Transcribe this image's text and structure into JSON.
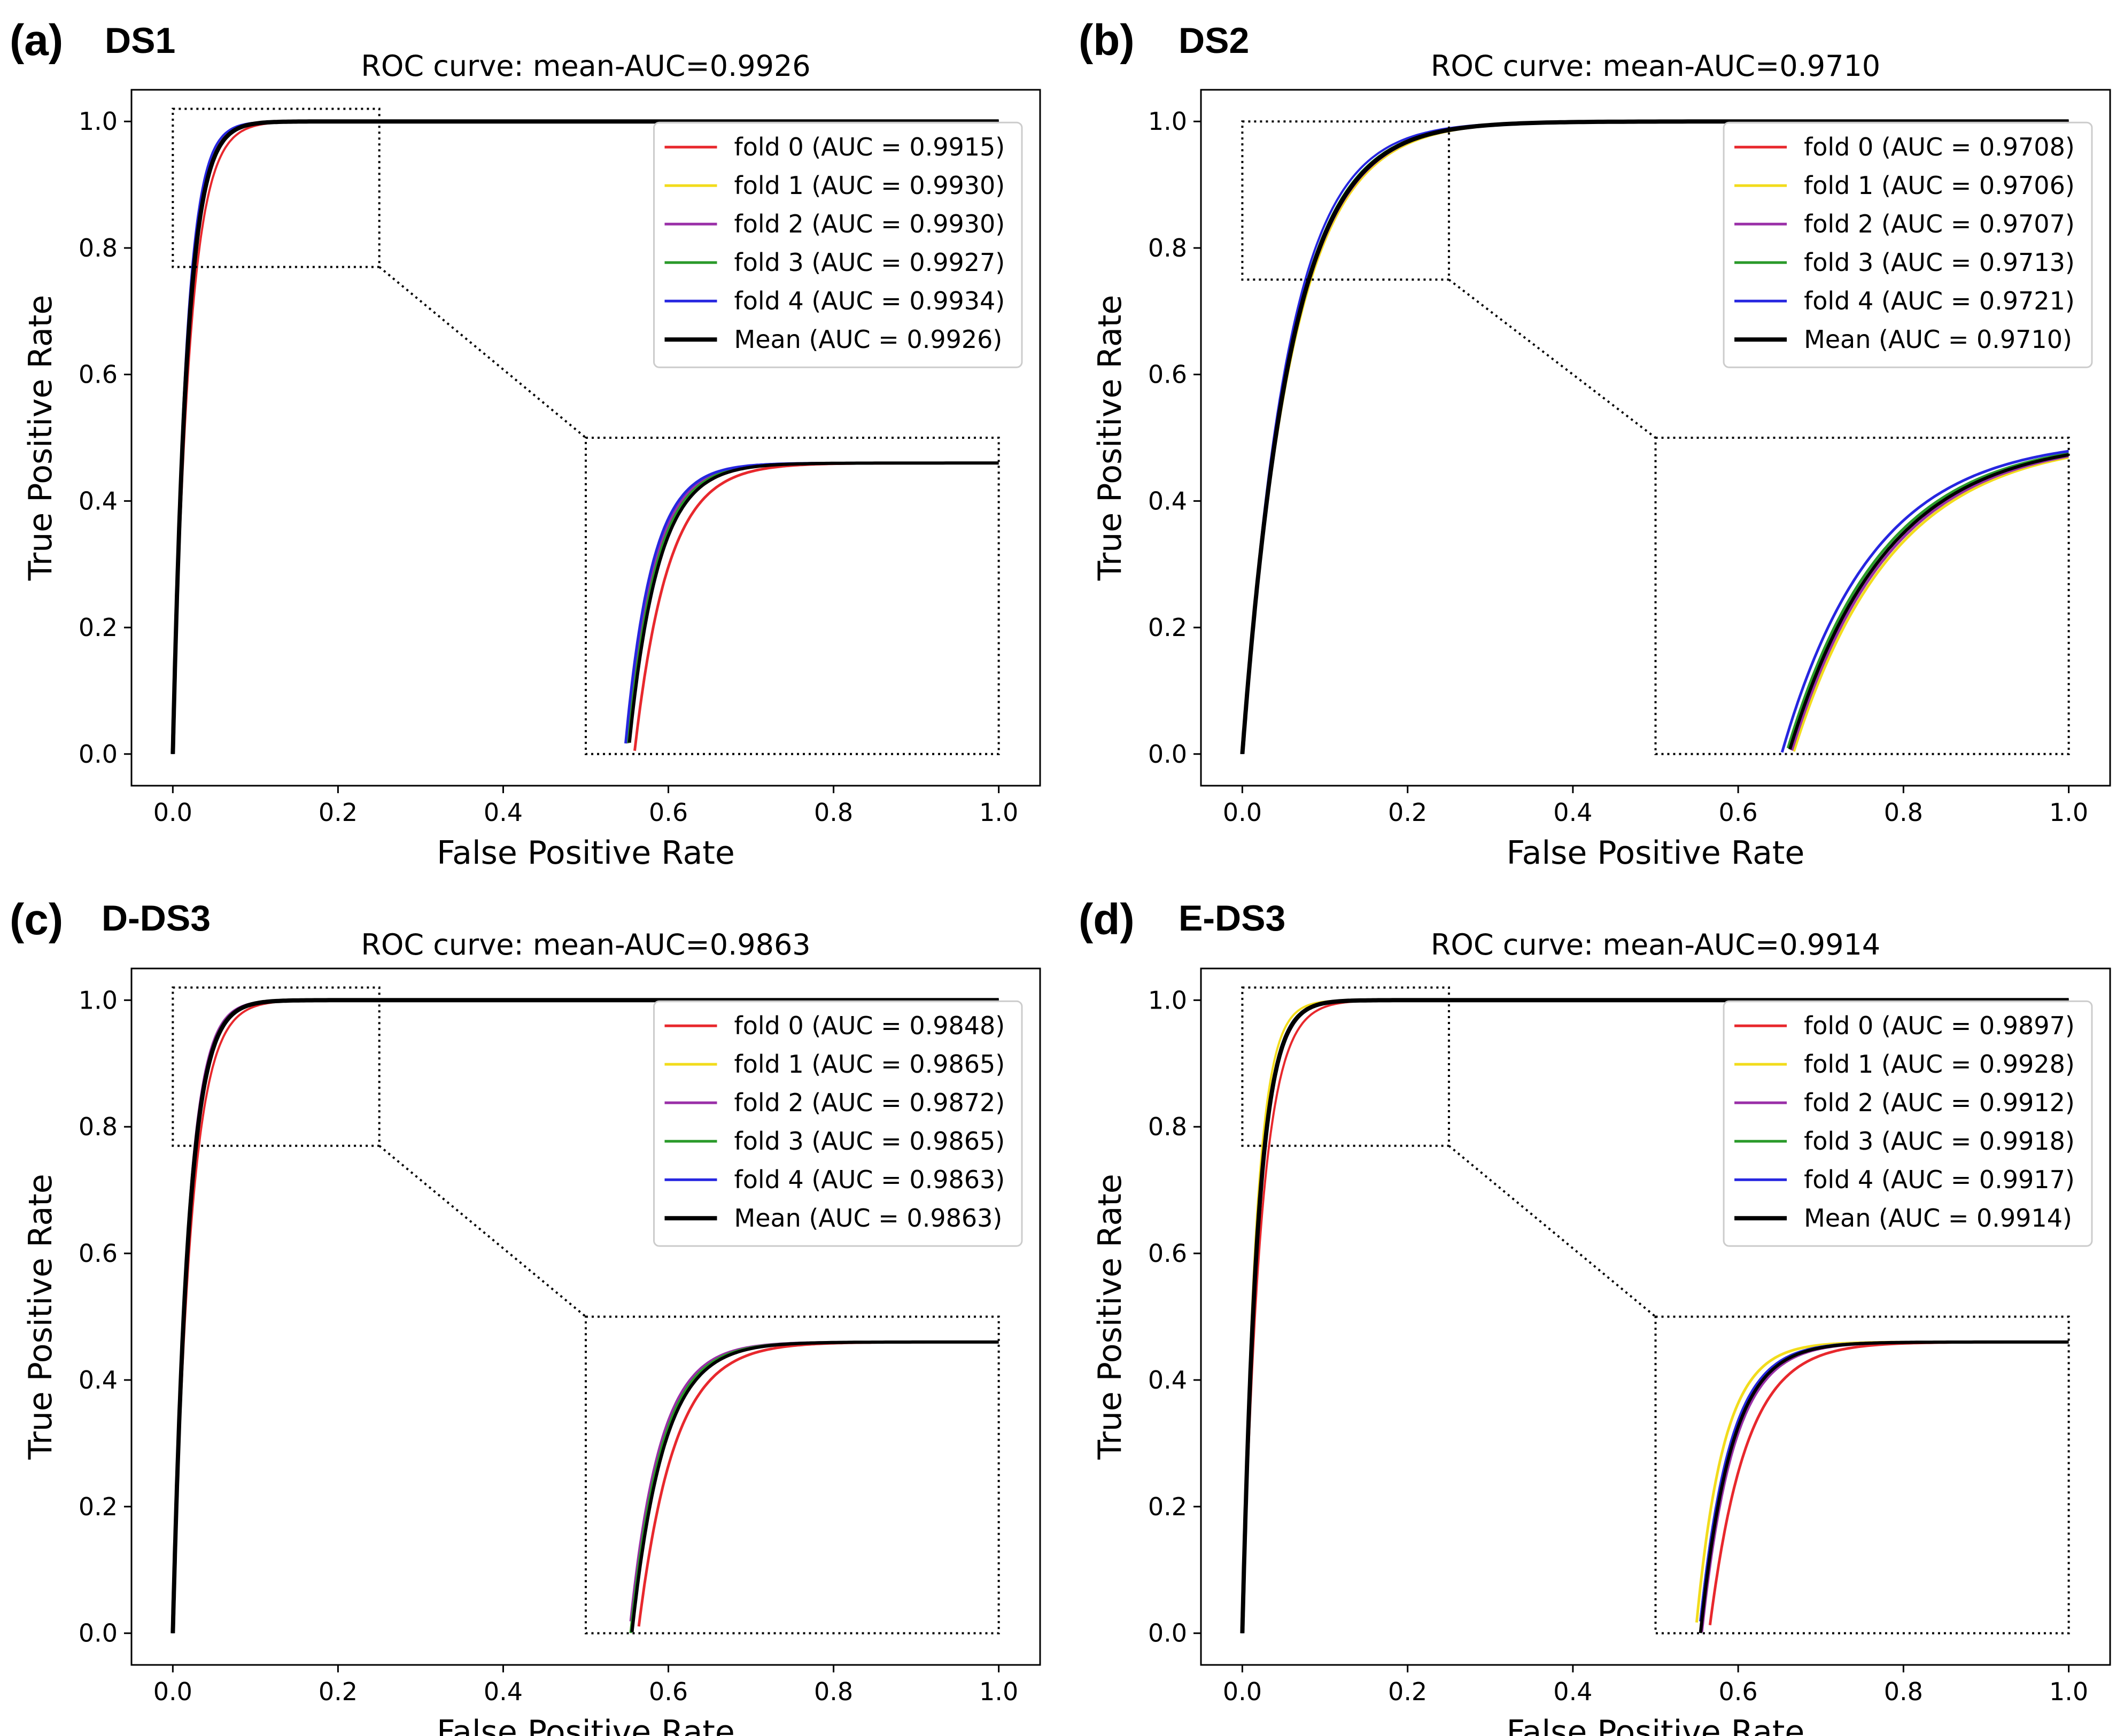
{
  "figure": {
    "xlabel": "False Positive Rate",
    "ylabel": "True Positive Rate",
    "colors": {
      "fold 0": "#e8282d",
      "fold 1": "#f2dc1c",
      "fold 2": "#9a30a8",
      "fold 3": "#2a9a2a",
      "fold 4": "#2626e0",
      "Mean": "#000000"
    }
  },
  "chart_data": [
    {
      "type": "line",
      "letter": "(a)",
      "name": "DS1",
      "title": "ROC curve: mean-AUC=0.9926",
      "xlabel": "False Positive Rate",
      "ylabel": "True Positive Rate",
      "xlim": [
        0,
        1
      ],
      "ylim": [
        0,
        1
      ],
      "xticks": [
        "0.0",
        "0.2",
        "0.4",
        "0.6",
        "0.8",
        "1.0"
      ],
      "yticks": [
        "0.0",
        "0.2",
        "0.4",
        "0.6",
        "0.8",
        "1.0"
      ],
      "zoom_region": {
        "x": [
          0,
          0.25
        ],
        "y": [
          0.77,
          1.02
        ]
      },
      "series": [
        {
          "name": "fold 0",
          "auc": "0.9915",
          "label": "fold 0 (AUC = 0.9915)",
          "k": 0.02
        },
        {
          "name": "fold 1",
          "auc": "0.9930",
          "label": "fold 1 (AUC = 0.9930)",
          "k": 0.0165
        },
        {
          "name": "fold 2",
          "auc": "0.9930",
          "label": "fold 2 (AUC = 0.9930)",
          "k": 0.0165
        },
        {
          "name": "fold 3",
          "auc": "0.9927",
          "label": "fold 3 (AUC = 0.9927)",
          "k": 0.017
        },
        {
          "name": "fold 4",
          "auc": "0.9934",
          "label": "fold 4 (AUC = 0.9934)",
          "k": 0.016
        },
        {
          "name": "Mean",
          "auc": "0.9926",
          "label": "Mean (AUC = 0.9926)",
          "k": 0.0175
        }
      ]
    },
    {
      "type": "line",
      "letter": "(b)",
      "name": "DS2",
      "title": "ROC curve: mean-AUC=0.9710",
      "xlabel": "False Positive Rate",
      "ylabel": "True Positive Rate",
      "xlim": [
        0,
        1
      ],
      "ylim": [
        0,
        1
      ],
      "xticks": [
        "0.0",
        "0.2",
        "0.4",
        "0.6",
        "0.8",
        "1.0"
      ],
      "yticks": [
        "0.0",
        "0.2",
        "0.4",
        "0.6",
        "0.8",
        "1.0"
      ],
      "zoom_region": {
        "x": [
          0,
          0.25
        ],
        "y": [
          0.75,
          1.0
        ]
      },
      "series": [
        {
          "name": "fold 0",
          "auc": "0.9708",
          "label": "fold 0 (AUC = 0.9708)",
          "k": 0.058
        },
        {
          "name": "fold 1",
          "auc": "0.9706",
          "label": "fold 1 (AUC = 0.9706)",
          "k": 0.06
        },
        {
          "name": "fold 2",
          "auc": "0.9707",
          "label": "fold 2 (AUC = 0.9707)",
          "k": 0.059
        },
        {
          "name": "fold 3",
          "auc": "0.9713",
          "label": "fold 3 (AUC = 0.9713)",
          "k": 0.057
        },
        {
          "name": "fold 4",
          "auc": "0.9721",
          "label": "fold 4 (AUC = 0.9721)",
          "k": 0.055
        },
        {
          "name": "Mean",
          "auc": "0.9710",
          "label": "Mean (AUC = 0.9710)",
          "k": 0.058
        }
      ]
    },
    {
      "type": "line",
      "letter": "(c)",
      "name": "D-DS3",
      "title": "ROC curve: mean-AUC=0.9863",
      "xlabel": "False Positive Rate",
      "ylabel": "True Positive Rate",
      "xlim": [
        0,
        1
      ],
      "ylim": [
        0,
        1
      ],
      "xticks": [
        "0.0",
        "0.2",
        "0.4",
        "0.6",
        "0.8",
        "1.0"
      ],
      "yticks": [
        "0.0",
        "0.2",
        "0.4",
        "0.6",
        "0.8",
        "1.0"
      ],
      "zoom_region": {
        "x": [
          0,
          0.25
        ],
        "y": [
          0.77,
          1.02
        ]
      },
      "series": [
        {
          "name": "fold 0",
          "auc": "0.9848",
          "label": "fold 0 (AUC = 0.9848)",
          "k": 0.0215
        },
        {
          "name": "fold 1",
          "auc": "0.9865",
          "label": "fold 1 (AUC = 0.9865)",
          "k": 0.0185
        },
        {
          "name": "fold 2",
          "auc": "0.9872",
          "label": "fold 2 (AUC = 0.9872)",
          "k": 0.018
        },
        {
          "name": "fold 3",
          "auc": "0.9865",
          "label": "fold 3 (AUC = 0.9865)",
          "k": 0.0185
        },
        {
          "name": "fold 4",
          "auc": "0.9863",
          "label": "fold 4 (AUC = 0.9863)",
          "k": 0.019
        },
        {
          "name": "Mean",
          "auc": "0.9863",
          "label": "Mean (AUC = 0.9863)",
          "k": 0.019
        }
      ]
    },
    {
      "type": "line",
      "letter": "(d)",
      "name": "E-DS3",
      "title": "ROC curve: mean-AUC=0.9914",
      "xlabel": "False Positive Rate",
      "ylabel": "True Positive Rate",
      "xlim": [
        0,
        1
      ],
      "ylim": [
        0,
        1
      ],
      "xticks": [
        "0.0",
        "0.2",
        "0.4",
        "0.6",
        "0.8",
        "1.0"
      ],
      "yticks": [
        "0.0",
        "0.2",
        "0.4",
        "0.6",
        "0.8",
        "1.0"
      ],
      "zoom_region": {
        "x": [
          0,
          0.25
        ],
        "y": [
          0.77,
          1.02
        ]
      },
      "series": [
        {
          "name": "fold 0",
          "auc": "0.9897",
          "label": "fold 0 (AUC = 0.9897)",
          "k": 0.022
        },
        {
          "name": "fold 1",
          "auc": "0.9928",
          "label": "fold 1 (AUC = 0.9928)",
          "k": 0.0165
        },
        {
          "name": "fold 2",
          "auc": "0.9912",
          "label": "fold 2 (AUC = 0.9912)",
          "k": 0.019
        },
        {
          "name": "fold 3",
          "auc": "0.9918",
          "label": "fold 3 (AUC = 0.9918)",
          "k": 0.018
        },
        {
          "name": "fold 4",
          "auc": "0.9917",
          "label": "fold 4 (AUC = 0.9917)",
          "k": 0.018
        },
        {
          "name": "Mean",
          "auc": "0.9914",
          "label": "Mean (AUC = 0.9914)",
          "k": 0.0185
        }
      ]
    }
  ]
}
